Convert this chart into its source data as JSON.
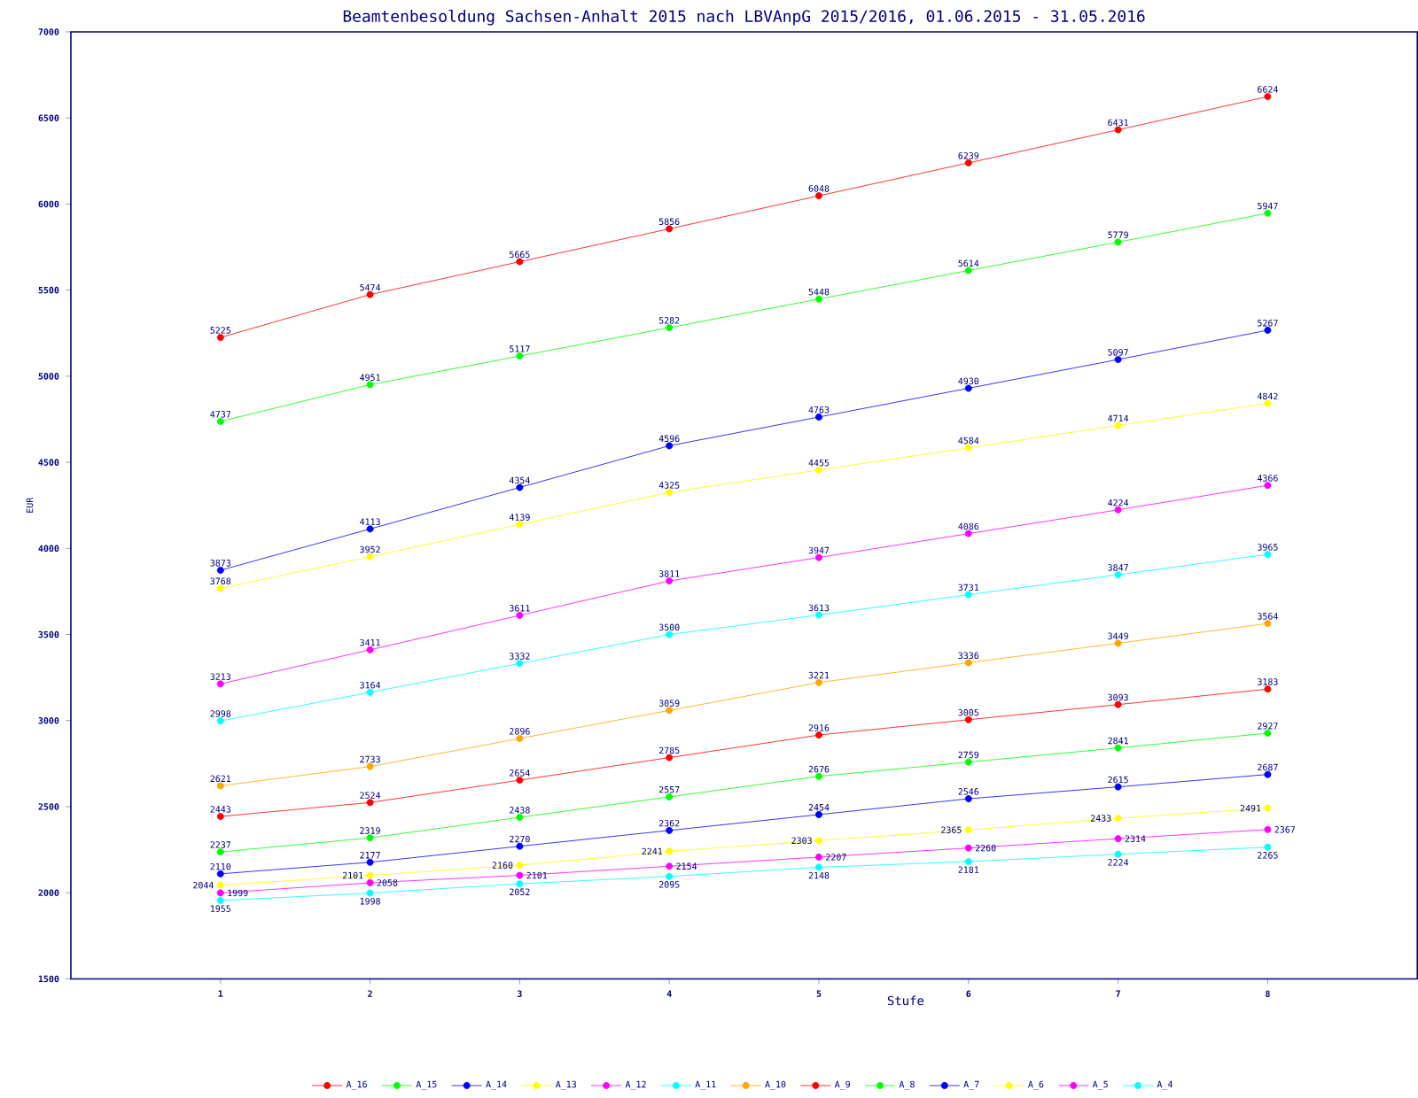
{
  "chart_data": {
    "type": "line",
    "title": "Beamtenbesoldung Sachsen-Anhalt 2015 nach LBVAnpG 2015/2016, 01.06.2015 - 31.05.2016",
    "xlabel": "Stufe",
    "ylabel": "EUR",
    "x": [
      1,
      2,
      3,
      4,
      5,
      6,
      7,
      8
    ],
    "xlim": [
      0,
      9
    ],
    "xticks": [
      1,
      2,
      3,
      4,
      5,
      6,
      7,
      8
    ],
    "ylim": [
      1500,
      7000
    ],
    "yticks": [
      1500,
      2000,
      2500,
      3000,
      3500,
      4000,
      4500,
      5000,
      5500,
      6000,
      6500,
      7000
    ],
    "grid": false,
    "legend": "bottom",
    "marker": "circle",
    "line_style": "solid",
    "data_labels": true,
    "series": [
      {
        "name": "A_16",
        "color": "#ff0000",
        "values": [
          5225,
          5474,
          5665,
          5856,
          6048,
          6239,
          6431,
          6624
        ]
      },
      {
        "name": "A_15",
        "color": "#00ff00",
        "values": [
          4737,
          4951,
          5117,
          5282,
          5448,
          5614,
          5779,
          5947
        ]
      },
      {
        "name": "A_14",
        "color": "#0000ff",
        "values": [
          3873,
          4113,
          4354,
          4596,
          4763,
          4930,
          5097,
          5267
        ]
      },
      {
        "name": "A_13",
        "color": "#ffff00",
        "values": [
          3768,
          3952,
          4139,
          4325,
          4455,
          4584,
          4714,
          4842
        ]
      },
      {
        "name": "A_12",
        "color": "#ff00ff",
        "values": [
          3213,
          3411,
          3611,
          3811,
          3947,
          4086,
          4224,
          4366
        ]
      },
      {
        "name": "A_11",
        "color": "#00ffff",
        "values": [
          2998,
          3164,
          3332,
          3500,
          3613,
          3731,
          3847,
          3965
        ]
      },
      {
        "name": "A_10",
        "color": "#ffa500",
        "values": [
          2621,
          2733,
          2896,
          3059,
          3221,
          3336,
          3449,
          3564
        ]
      },
      {
        "name": "A_9",
        "color": "#ff0000",
        "values": [
          2443,
          2524,
          2654,
          2785,
          2916,
          3005,
          3093,
          3183
        ]
      },
      {
        "name": "A_8",
        "color": "#00ff00",
        "values": [
          2237,
          2319,
          2438,
          2557,
          2676,
          2759,
          2841,
          2927
        ]
      },
      {
        "name": "A_7",
        "color": "#0000ff",
        "values": [
          2110,
          2177,
          2270,
          2362,
          2454,
          2546,
          2615,
          2687
        ]
      },
      {
        "name": "A_6",
        "color": "#ffff00",
        "values": [
          2044,
          2101,
          2160,
          2241,
          2303,
          2365,
          2433,
          2491
        ]
      },
      {
        "name": "A_5",
        "color": "#ff00ff",
        "values": [
          1999,
          2058,
          2101,
          2154,
          2207,
          2260,
          2314,
          2367
        ]
      },
      {
        "name": "A_4",
        "color": "#00ffff",
        "values": [
          1955,
          1998,
          2052,
          2095,
          2148,
          2181,
          2224,
          2265
        ]
      }
    ]
  }
}
